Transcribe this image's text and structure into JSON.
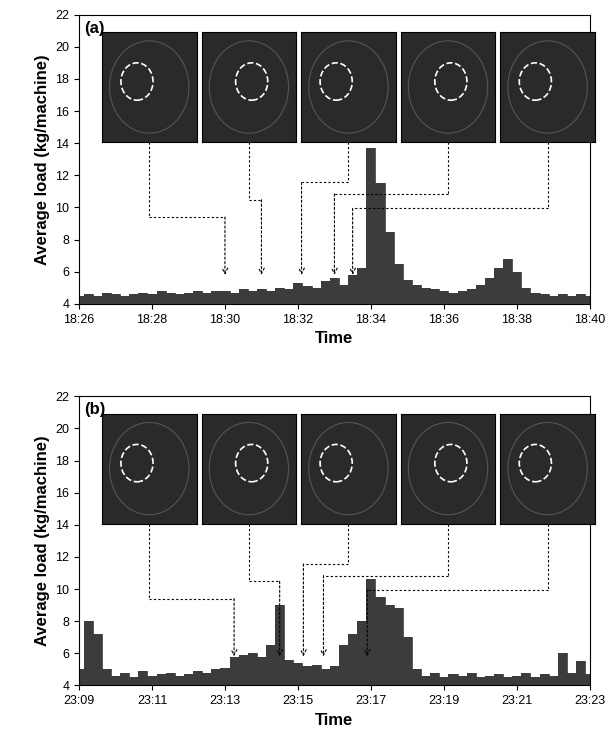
{
  "chart_data": [
    {
      "type": "area",
      "title": "(a)",
      "x_label": "Time",
      "y_label": "Average load (kg/machine)",
      "color": "#3c3c3c",
      "x": [
        1106,
        1106.25,
        1106.5,
        1106.75,
        1107,
        1107.25,
        1107.5,
        1107.75,
        1108,
        1108.25,
        1108.5,
        1108.75,
        1109,
        1109.25,
        1109.5,
        1109.75,
        1110,
        1110.25,
        1110.5,
        1110.75,
        1111,
        1111.25,
        1111.5,
        1111.75,
        1112,
        1112.25,
        1112.5,
        1112.75,
        1113,
        1113.25,
        1113.5,
        1113.75,
        1114,
        1114.25,
        1114.5,
        1114.75,
        1115,
        1115.25,
        1115.5,
        1115.75,
        1116,
        1116.25,
        1116.5,
        1116.75,
        1117,
        1117.25,
        1117.5,
        1117.75,
        1118,
        1118.25,
        1118.5,
        1118.75,
        1119,
        1119.25,
        1119.5,
        1119.75,
        1120
      ],
      "values": [
        4.5,
        4.6,
        4.5,
        4.7,
        4.6,
        4.5,
        4.6,
        4.7,
        4.6,
        4.8,
        4.7,
        4.6,
        4.7,
        4.8,
        4.7,
        4.8,
        4.8,
        4.7,
        4.9,
        4.8,
        4.9,
        4.8,
        5.0,
        4.9,
        5.3,
        5.1,
        5.0,
        5.4,
        5.6,
        5.2,
        5.8,
        6.2,
        13.7,
        11.5,
        8.5,
        6.5,
        5.5,
        5.2,
        5.0,
        4.9,
        4.8,
        4.7,
        4.8,
        4.9,
        5.2,
        5.6,
        6.2,
        6.8,
        6.0,
        5.0,
        4.7,
        4.6,
        4.5,
        4.6,
        4.5,
        4.6,
        4.5
      ],
      "xlim": [
        1106,
        1120
      ],
      "xticks": [
        {
          "value": 1106,
          "label": "18:26"
        },
        {
          "value": 1108,
          "label": "18:28"
        },
        {
          "value": 1110,
          "label": "18:30"
        },
        {
          "value": 1112,
          "label": "18:32"
        },
        {
          "value": 1114,
          "label": "18:34"
        },
        {
          "value": 1116,
          "label": "18:36"
        },
        {
          "value": 1118,
          "label": "18:38"
        },
        {
          "value": 1120,
          "label": "18:40"
        }
      ],
      "ylim": [
        4,
        22
      ],
      "yticks": [
        4,
        6,
        8,
        10,
        12,
        14,
        16,
        18,
        20,
        22
      ],
      "image_times": [
        1110,
        1111,
        1112.1,
        1113,
        1113.5
      ]
    },
    {
      "type": "area",
      "title": "(b)",
      "x_label": "Time",
      "y_label": "Average load (kg/machine)",
      "color": "#3c3c3c",
      "x": [
        1389,
        1389.25,
        1389.5,
        1389.75,
        1390,
        1390.25,
        1390.5,
        1390.75,
        1391,
        1391.25,
        1391.5,
        1391.75,
        1392,
        1392.25,
        1392.5,
        1392.75,
        1393,
        1393.25,
        1393.5,
        1393.75,
        1394,
        1394.25,
        1394.5,
        1394.75,
        1395,
        1395.25,
        1395.5,
        1395.75,
        1396,
        1396.25,
        1396.5,
        1396.75,
        1397,
        1397.25,
        1397.5,
        1397.75,
        1398,
        1398.25,
        1398.5,
        1398.75,
        1399,
        1399.25,
        1399.5,
        1399.75,
        1400,
        1400.25,
        1400.5,
        1400.75,
        1401,
        1401.25,
        1401.5,
        1401.75,
        1402,
        1402.25,
        1402.5,
        1402.75,
        1403
      ],
      "values": [
        5.0,
        8.0,
        7.2,
        5.0,
        4.6,
        4.8,
        4.5,
        4.9,
        4.6,
        4.7,
        4.8,
        4.6,
        4.7,
        4.9,
        4.8,
        5.0,
        5.1,
        5.8,
        5.9,
        6.0,
        5.8,
        6.5,
        9.0,
        5.6,
        5.4,
        5.2,
        5.3,
        5.0,
        5.2,
        6.5,
        7.2,
        8.0,
        10.6,
        9.5,
        9.0,
        8.8,
        7.0,
        5.0,
        4.6,
        4.8,
        4.5,
        4.7,
        4.6,
        4.8,
        4.5,
        4.6,
        4.7,
        4.5,
        4.6,
        4.8,
        4.5,
        4.7,
        4.6,
        6.0,
        4.8,
        5.5,
        4.7
      ],
      "xlim": [
        1389,
        1403
      ],
      "xticks": [
        {
          "value": 1389,
          "label": "23:09"
        },
        {
          "value": 1391,
          "label": "23:11"
        },
        {
          "value": 1393,
          "label": "23:13"
        },
        {
          "value": 1395,
          "label": "23:15"
        },
        {
          "value": 1397,
          "label": "23:17"
        },
        {
          "value": 1399,
          "label": "23:19"
        },
        {
          "value": 1401,
          "label": "23:21"
        },
        {
          "value": 1403,
          "label": "23:23"
        }
      ],
      "ylim": [
        4,
        22
      ],
      "yticks": [
        4,
        6,
        8,
        10,
        12,
        14,
        16,
        18,
        20,
        22
      ],
      "image_times": [
        1393.25,
        1394.5,
        1395.15,
        1395.7,
        1396.9
      ]
    }
  ]
}
